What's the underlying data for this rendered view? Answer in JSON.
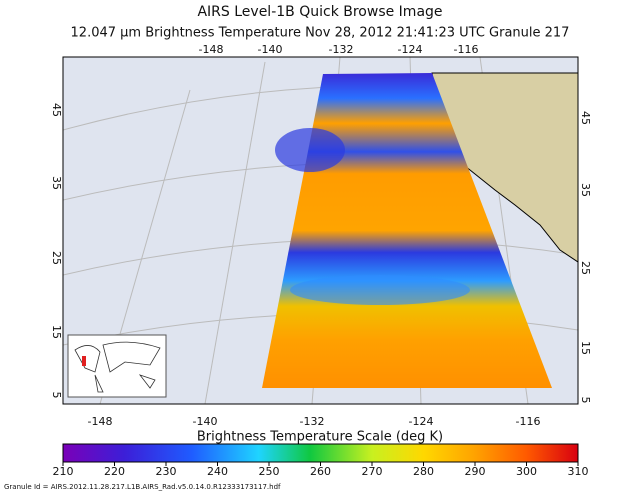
{
  "header": {
    "title": "AIRS Level-1B Quick Browse Image",
    "subtitle": "12.047 μm Brightness Temperature   Nov 28, 2012 21:41:23 UTC   Granule 217"
  },
  "map": {
    "top_lon_labels": [
      "-148",
      "-140",
      "-132",
      "-124",
      "-116"
    ],
    "bottom_lon_labels": [
      "-148",
      "-140",
      "-132",
      "-124",
      "-116"
    ],
    "left_lat_labels": [
      "45",
      "35",
      "25",
      "15",
      "5"
    ],
    "right_lat_labels": [
      "45",
      "35",
      "25",
      "15",
      "5"
    ]
  },
  "colorbar": {
    "title": "Brightness Temperature Scale (deg K)",
    "ticks": [
      210,
      220,
      230,
      240,
      250,
      260,
      270,
      280,
      290,
      300,
      310
    ]
  },
  "footer": "Granule Id = AIRS.2012.11.28.217.L1B.AIRS_Rad.v5.0.14.0.R12333173117.hdf"
}
